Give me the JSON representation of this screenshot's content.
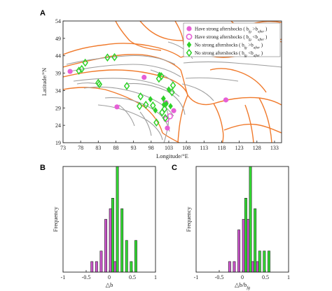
{
  "colors": {
    "boundary": "#f07a2c",
    "faults": "#9e9e9e",
    "magenta": "#e65fd6",
    "green": "#2fd12a",
    "hist_b_big": "#cc55cc",
    "hist_b_small": "#33dd33"
  },
  "chart_data": [
    {
      "panel_label": "A",
      "type": "scatter",
      "xlabel": "Longitude/°E",
      "ylabel": "Latitude/°N",
      "xlim": [
        73,
        135
      ],
      "ylim": [
        19,
        54
      ],
      "xticks": [
        73,
        78,
        83,
        88,
        93,
        98,
        103,
        108,
        113,
        118,
        123,
        128,
        133
      ],
      "yticks": [
        19,
        24,
        29,
        34,
        39,
        44,
        49,
        54
      ],
      "legend_position": "top-right",
      "series": [
        {
          "name": "Have strong aftershocks ( bfg>bafter )",
          "legend_parts": [
            "Have strong aftershocks ( b",
            "fg",
            " >b",
            "after",
            " )"
          ],
          "marker": "filled-circle",
          "color": "#e65fd6",
          "points": [
            [
              75,
              39.5
            ],
            [
              96,
              37.8
            ],
            [
              102.2,
              30.5
            ],
            [
              104.4,
              28.2
            ],
            [
              88.3,
              29.3
            ],
            [
              102.6,
              23.2
            ],
            [
              119.2,
              31.3
            ]
          ]
        },
        {
          "name": "Have strong aftershocks ( bfg<bafter )",
          "legend_parts": [
            "Have strong aftershocks ( b",
            "fg",
            " <b",
            "after",
            " )"
          ],
          "marker": "open-circle",
          "color": "#e65fd6",
          "points": [
            [
              102.3,
              25.8
            ],
            [
              103.3,
              26.6
            ]
          ]
        },
        {
          "name": "No strong aftershocks ( bfg>bafter )",
          "legend_parts": [
            "No strong aftershocks ( b",
            "fg",
            " >b",
            "after",
            " )"
          ],
          "marker": "filled-diamond",
          "color": "#2fd12a",
          "points": [
            [
              100.4,
              38.5
            ],
            [
              103,
              34.3
            ],
            [
              97.8,
              31.5
            ],
            [
              101.5,
              31.7
            ],
            [
              102.3,
              30.2
            ],
            [
              103.5,
              29.5
            ],
            [
              99.2,
              28.3
            ],
            [
              101.6,
              29.9
            ]
          ]
        },
        {
          "name": "No strong aftershocks ( bfg<bafter )",
          "legend_parts": [
            "No strong aftershocks ( b",
            "fg",
            " <b",
            "after",
            " )"
          ],
          "marker": "open-diamond",
          "color": "#2fd12a",
          "points": [
            [
              79.3,
              42
            ],
            [
              78.3,
              40.2
            ],
            [
              77.5,
              39.7
            ],
            [
              85.6,
              43.5
            ],
            [
              87.6,
              43.6
            ],
            [
              83,
              36.2
            ],
            [
              83.3,
              35.8
            ],
            [
              91.1,
              35.3
            ],
            [
              100.9,
              38.1
            ],
            [
              100.2,
              37.4
            ],
            [
              104.2,
              35.5
            ],
            [
              103.9,
              33.5
            ],
            [
              95,
              32.3
            ],
            [
              96.5,
              29.9
            ],
            [
              98.5,
              29.7
            ],
            [
              94.7,
              29.5
            ],
            [
              101.8,
              28.7
            ],
            [
              101.1,
              27.7
            ],
            [
              99.5,
              24.8
            ],
            [
              102,
              26.1
            ]
          ]
        }
      ]
    },
    {
      "panel_label": "B",
      "type": "bar",
      "xlabel": "△b",
      "ylabel": "Frequency",
      "xlim": [
        -1,
        1
      ],
      "ylim": [
        0,
        10
      ],
      "xticks": [
        -1,
        -0.5,
        0,
        0.5,
        1
      ],
      "xtick_labels": [
        "-1",
        "-0.5",
        "0",
        "0.5",
        "1"
      ],
      "bin_width": 0.1,
      "series": [
        {
          "name": "",
          "color": "#cc55cc",
          "bins": [
            [
              -0.4,
              1
            ],
            [
              -0.3,
              1
            ],
            [
              -0.2,
              2
            ],
            [
              -0.1,
              5
            ],
            [
              0,
              6
            ],
            [
              0.1,
              1
            ]
          ]
        },
        {
          "name": "",
          "color": "#33dd33",
          "bins": [
            [
              0,
              7
            ],
            [
              0.1,
              10
            ],
            [
              0.2,
              6
            ],
            [
              0.3,
              3
            ],
            [
              0.4,
              1
            ],
            [
              0.5,
              3
            ]
          ]
        }
      ]
    },
    {
      "panel_label": "C",
      "type": "bar",
      "xlabel": "△b/bfg",
      "xlabel_parts": [
        "△b/b",
        "fg"
      ],
      "ylabel": "Frequency",
      "xlim": [
        -1,
        1
      ],
      "ylim": [
        0,
        10
      ],
      "xticks": [
        -1,
        -0.5,
        0,
        0.5,
        1
      ],
      "xtick_labels": [
        "-1",
        "-0.5",
        "0",
        "0.5",
        "1"
      ],
      "bin_width": 0.1,
      "series": [
        {
          "name": "",
          "color": "#cc55cc",
          "bins": [
            [
              -0.3,
              1
            ],
            [
              -0.2,
              1
            ],
            [
              -0.1,
              4
            ],
            [
              0,
              5
            ],
            [
              0.1,
              5
            ],
            [
              0.2,
              1
            ],
            [
              0.3,
              1
            ]
          ]
        },
        {
          "name": "",
          "color": "#33dd33",
          "bins": [
            [
              0,
              7
            ],
            [
              0.1,
              10
            ],
            [
              0.2,
              6
            ],
            [
              0.3,
              2
            ],
            [
              0.4,
              2
            ],
            [
              0.5,
              2
            ]
          ]
        }
      ]
    }
  ]
}
